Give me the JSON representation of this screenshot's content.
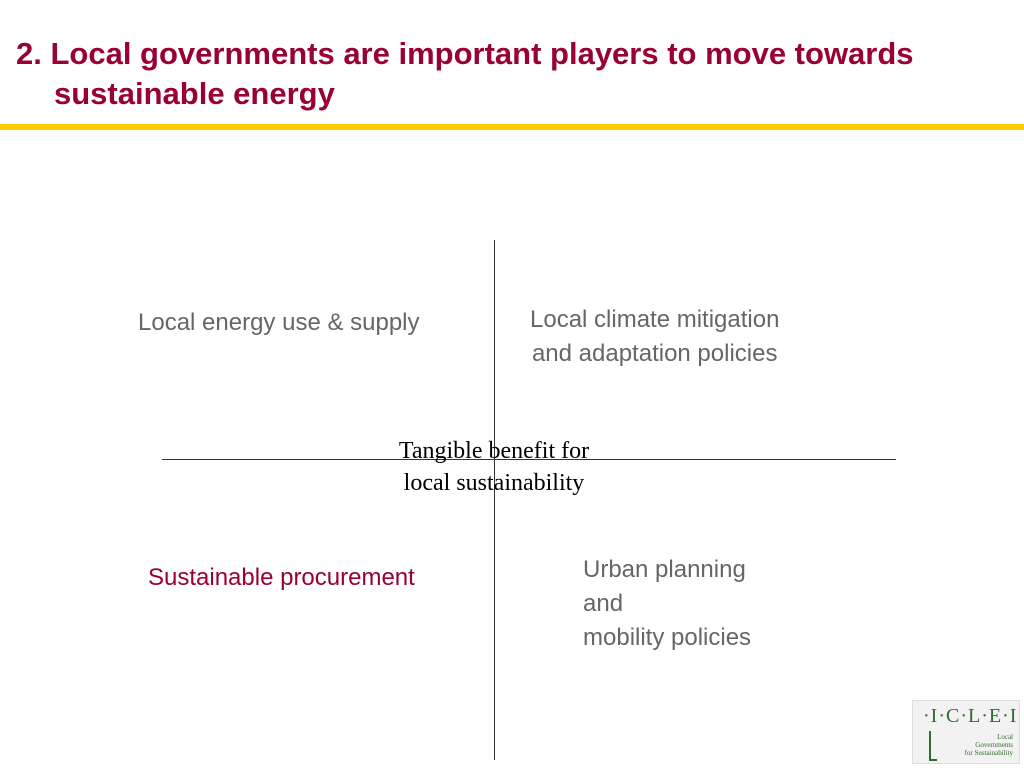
{
  "title": {
    "line1": "2. Local governments are important players to move towards",
    "line2": "sustainable energy"
  },
  "diagram": {
    "center_label": {
      "line1": "Tangible benefit for",
      "line2": "local sustainability"
    },
    "quadrants": {
      "top_left": {
        "line1": "Local energy use & supply"
      },
      "top_right": {
        "line1": "Local climate mitigation",
        "line2": "and adaptation policies"
      },
      "bottom_left": {
        "line1": "Sustainable procurement"
      },
      "bottom_right": {
        "line1": "Urban planning",
        "line2": "and",
        "line3": "mobility policies"
      }
    }
  },
  "logo": {
    "mark": "·I·C·L·E·I",
    "sub1": "Local",
    "sub2": "Governments",
    "sub3": "for Sustainability"
  },
  "colors": {
    "title": "#990033",
    "rule": "#ffcc00",
    "quadrant_text": "#666666",
    "highlight_text": "#990033",
    "logo_green": "#2d6e2d"
  }
}
